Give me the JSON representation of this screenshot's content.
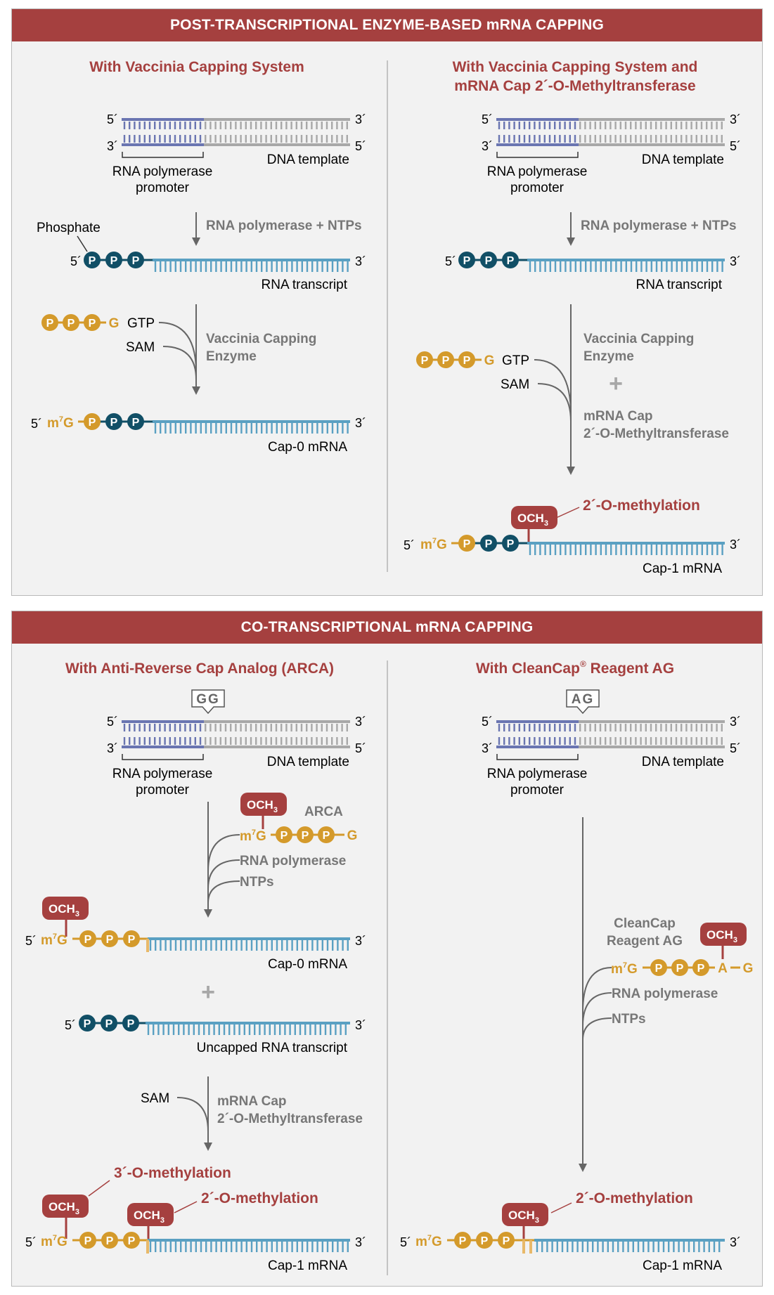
{
  "colors": {
    "header": "#a5403f",
    "panel_bg": "#f2f2f2",
    "subtitle": "#a5403f",
    "gray_label": "#777777",
    "teal": "#114f66",
    "gold": "#d49a2b",
    "blue_strand": "#6a75b1",
    "gray_strand": "#a8a8a8",
    "rna_blue": "#5aa0c2"
  },
  "panels": {
    "post": {
      "header": "POST-TRANSCRIPTIONAL ENZYME-BASED mRNA CAPPING",
      "left_title": "With Vaccinia Capping System",
      "right_title_1": "With Vaccinia Capping System and",
      "right_title_2": "mRNA Cap 2´-O-Methyltransferase"
    },
    "co": {
      "header": "CO-TRANSCRIPTIONAL mRNA CAPPING",
      "left_title": "With Anti-Reverse Cap Analog (ARCA)",
      "right_title": "With CleanCap",
      "right_title_reg": "®",
      "right_title_tail": " Reagent AG"
    }
  },
  "labels": {
    "five": "5´",
    "three": "3´",
    "dna_template": "DNA template",
    "promoter_1": "RNA polymerase",
    "promoter_2": "promoter",
    "rnap_ntps": "RNA polymerase + NTPs",
    "phosphate": "Phosphate",
    "rna_transcript": "RNA transcript",
    "gtp": "GTP",
    "sam": "SAM",
    "vaccinia_1": "Vaccinia Capping",
    "vaccinia_2": "Enzyme",
    "plus": "+",
    "mtase_1": "mRNA Cap",
    "mtase_2": "2´-O-Methyltransferase",
    "cap0": "Cap-0 mRNA",
    "cap1": "Cap-1 mRNA",
    "p": "P",
    "g": "G",
    "a": "A",
    "m": "m",
    "sup7": "7",
    "och": "OCH",
    "sub3": "3",
    "two_o_methylation": "2´-O-methylation",
    "three_o_methylation": "3´-O-methylation",
    "gg": "GG",
    "ag": "AG",
    "arca": "ARCA",
    "rna_polymerase": "RNA polymerase",
    "ntps": "NTPs",
    "uncapped": "Uncapped RNA transcript",
    "cleancap_1": "CleanCap",
    "cleancap_2": "Reagent AG"
  }
}
